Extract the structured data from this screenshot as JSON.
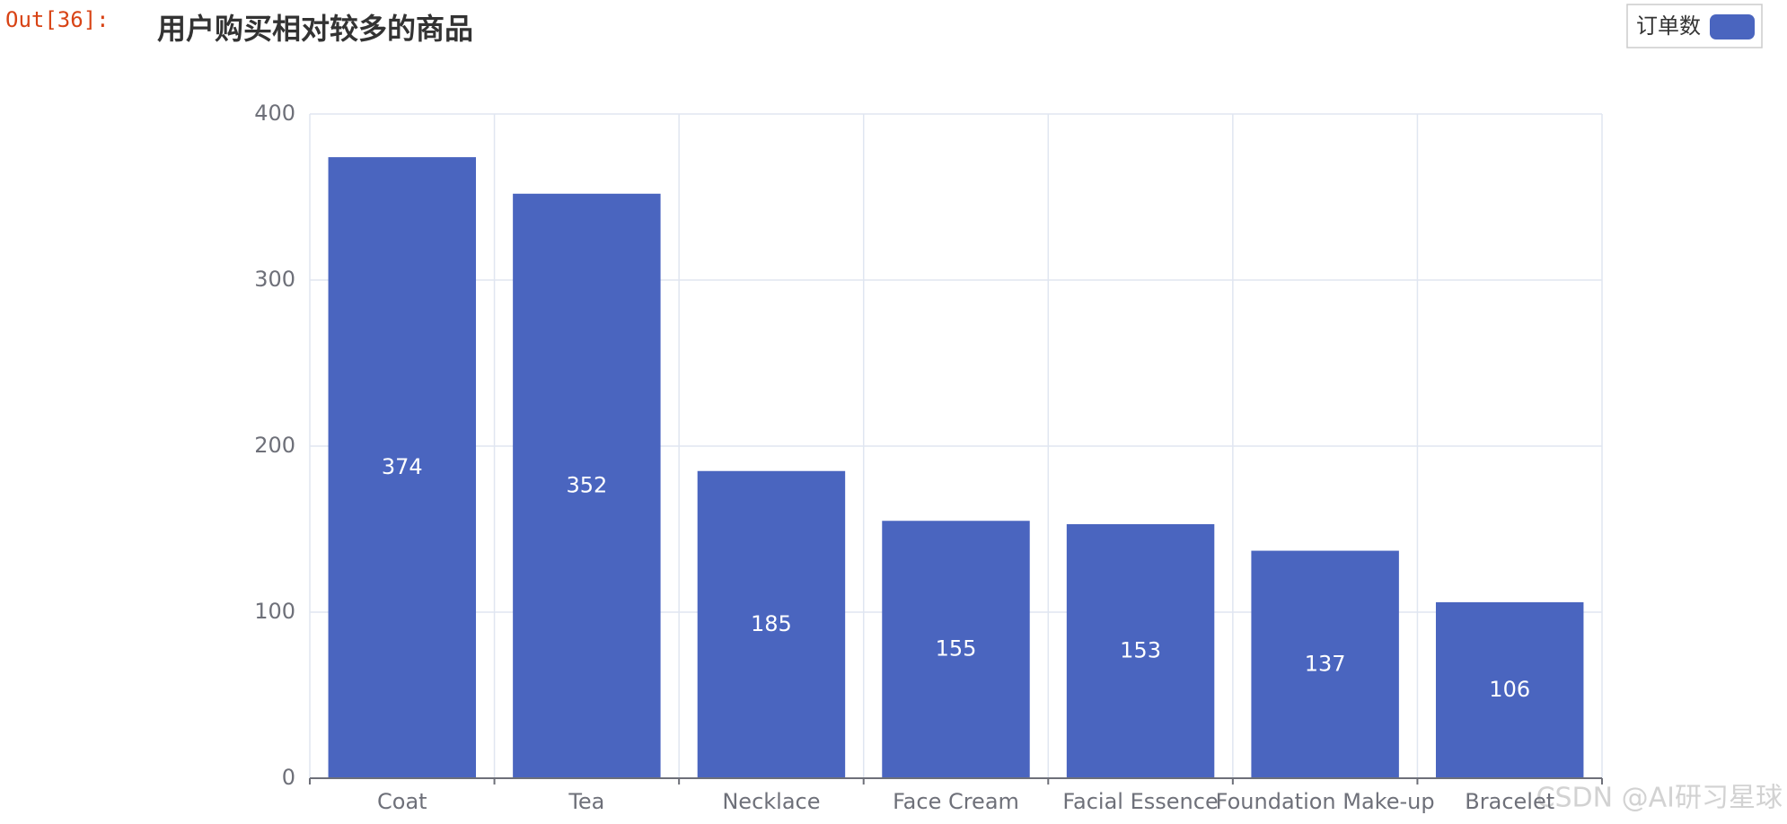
{
  "prompt": "Out[36]:",
  "watermark": "CSDN @AI研习星球",
  "chart_data": {
    "type": "bar",
    "title": "用户购买相对较多的商品",
    "categories": [
      "Coat",
      "Tea",
      "Necklace",
      "Face Cream",
      "Facial Essence",
      "Foundation Make-up",
      "Bracelet"
    ],
    "series": [
      {
        "name": "订单数",
        "color": "#4a65bf",
        "values": [
          374,
          352,
          185,
          155,
          153,
          137,
          106
        ]
      }
    ],
    "ylim": [
      0,
      400
    ],
    "yticks": [
      0,
      100,
      200,
      300,
      400
    ],
    "grid": true,
    "legend": "top-right"
  }
}
